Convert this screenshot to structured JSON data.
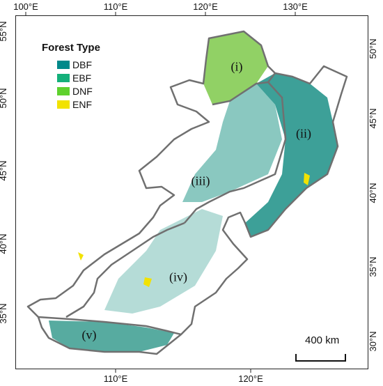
{
  "legend": {
    "title": "Forest Type",
    "items": [
      {
        "label": "DBF",
        "color": "#00898a"
      },
      {
        "label": "EBF",
        "color": "#14b07a"
      },
      {
        "label": "DNF",
        "color": "#5fd12e"
      },
      {
        "label": "ENF",
        "color": "#f2e200"
      }
    ]
  },
  "ticks": {
    "top": [
      "100°E",
      "110°E",
      "120°E",
      "130°E"
    ],
    "bottom": [
      "110°E",
      "120°E"
    ],
    "left": [
      "55°N",
      "50°N",
      "45°N",
      "40°N",
      "35°N"
    ],
    "right": [
      "50°N",
      "45°N",
      "40°N",
      "35°N",
      "30°N"
    ]
  },
  "regions": [
    "(i)",
    "(ii)",
    "(iii)",
    "(iv)",
    "(v)"
  ],
  "scale_bar": {
    "label": "400 km"
  },
  "colors": {
    "boundary": "#707070",
    "frame": "#222222"
  }
}
